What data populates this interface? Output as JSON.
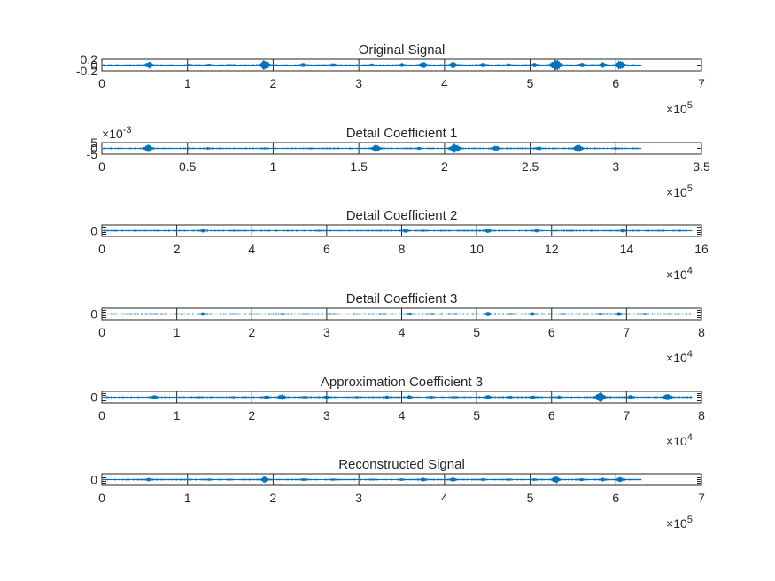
{
  "figure": {
    "background": "#ffffff",
    "line_color": "#0072BD",
    "axis_color": "#262626"
  },
  "chart_data": [
    {
      "type": "line",
      "title": "Original Signal",
      "xlim": [
        0,
        700000
      ],
      "xticks": [
        0,
        100000,
        200000,
        300000,
        400000,
        500000,
        600000,
        700000
      ],
      "xtick_labels": [
        "0",
        "1",
        "2",
        "3",
        "4",
        "5",
        "6",
        "7"
      ],
      "x_exponent": "10",
      "x_exponent_power": "5",
      "ylim": [
        -0.2,
        0.2
      ],
      "yticks": [
        0.2,
        0,
        -0.2
      ],
      "ytick_labels": [
        "0.2",
        "0",
        "-0.2"
      ],
      "y_exponent": "",
      "data_length": 630000,
      "bursts": [
        {
          "x": 55000,
          "amp": 0.12
        },
        {
          "x": 102000,
          "amp": 0.05
        },
        {
          "x": 125000,
          "amp": 0.06
        },
        {
          "x": 150000,
          "amp": 0.05
        },
        {
          "x": 190000,
          "amp": 0.17
        },
        {
          "x": 235000,
          "amp": 0.08
        },
        {
          "x": 270000,
          "amp": 0.07
        },
        {
          "x": 315000,
          "amp": 0.06
        },
        {
          "x": 350000,
          "amp": 0.07
        },
        {
          "x": 375000,
          "amp": 0.12
        },
        {
          "x": 410000,
          "amp": 0.12
        },
        {
          "x": 445000,
          "amp": 0.09
        },
        {
          "x": 475000,
          "amp": 0.07
        },
        {
          "x": 505000,
          "amp": 0.08
        },
        {
          "x": 530000,
          "amp": 0.2
        },
        {
          "x": 560000,
          "amp": 0.09
        },
        {
          "x": 585000,
          "amp": 0.1
        },
        {
          "x": 605000,
          "amp": 0.16
        }
      ]
    },
    {
      "type": "line",
      "title": "Detail Coefficient 1",
      "xlim": [
        0,
        350000
      ],
      "xticks": [
        0,
        50000,
        100000,
        150000,
        200000,
        250000,
        300000,
        350000
      ],
      "xtick_labels": [
        "0",
        "0.5",
        "1",
        "1.5",
        "2",
        "2.5",
        "3",
        "3.5"
      ],
      "x_exponent": "10",
      "x_exponent_power": "5",
      "ylim": [
        -0.005,
        0.005
      ],
      "yticks": [
        0.005,
        0,
        -0.005
      ],
      "ytick_labels": [
        "5",
        "0",
        "-5"
      ],
      "y_exponent": "10",
      "y_exponent_power": "-3",
      "data_length": 315000,
      "bursts": [
        {
          "x": 27000,
          "amp": 0.0035
        },
        {
          "x": 62000,
          "amp": 0.0012
        },
        {
          "x": 95000,
          "amp": 0.001
        },
        {
          "x": 122000,
          "amp": 0.0009
        },
        {
          "x": 160000,
          "amp": 0.0035
        },
        {
          "x": 185000,
          "amp": 0.0015
        },
        {
          "x": 206000,
          "amp": 0.0045
        },
        {
          "x": 230000,
          "amp": 0.0025
        },
        {
          "x": 255000,
          "amp": 0.002
        },
        {
          "x": 278000,
          "amp": 0.0035
        },
        {
          "x": 300000,
          "amp": 0.0012
        }
      ]
    },
    {
      "type": "line",
      "title": "Detail Coefficient 2",
      "xlim": [
        0,
        160000
      ],
      "xticks": [
        0,
        20000,
        40000,
        60000,
        80000,
        100000,
        120000,
        140000,
        160000
      ],
      "xtick_labels": [
        "0",
        "2",
        "4",
        "6",
        "8",
        "10",
        "12",
        "14",
        "16"
      ],
      "x_exponent": "10",
      "x_exponent_power": "4",
      "ylim": [
        -0.06,
        0.06
      ],
      "yticks": [
        0
      ],
      "ytick_labels": [
        "0"
      ],
      "y_exponent": "",
      "data_length": 157500,
      "bursts": [
        {
          "x": 27000,
          "amp": 0.02
        },
        {
          "x": 35000,
          "amp": 0.006
        },
        {
          "x": 58000,
          "amp": 0.006
        },
        {
          "x": 81000,
          "amp": 0.025
        },
        {
          "x": 86000,
          "amp": 0.012
        },
        {
          "x": 103000,
          "amp": 0.025
        },
        {
          "x": 116000,
          "amp": 0.02
        },
        {
          "x": 125000,
          "amp": 0.012
        },
        {
          "x": 139000,
          "amp": 0.022
        },
        {
          "x": 149000,
          "amp": 0.006
        }
      ]
    },
    {
      "type": "line",
      "title": "Detail Coefficient 3",
      "xlim": [
        0,
        80000
      ],
      "xticks": [
        0,
        10000,
        20000,
        30000,
        40000,
        50000,
        60000,
        70000,
        80000
      ],
      "xtick_labels": [
        "0",
        "1",
        "2",
        "3",
        "4",
        "5",
        "6",
        "7",
        "8"
      ],
      "x_exponent": "10",
      "x_exponent_power": "4",
      "ylim": [
        -0.06,
        0.06
      ],
      "yticks": [
        0
      ],
      "ytick_labels": [
        "0"
      ],
      "y_exponent": "",
      "data_length": 78750,
      "bursts": [
        {
          "x": 7000,
          "amp": 0.006
        },
        {
          "x": 13500,
          "amp": 0.02
        },
        {
          "x": 17500,
          "amp": 0.01
        },
        {
          "x": 24000,
          "amp": 0.012
        },
        {
          "x": 30500,
          "amp": 0.01
        },
        {
          "x": 34000,
          "amp": 0.008
        },
        {
          "x": 37500,
          "amp": 0.01
        },
        {
          "x": 41000,
          "amp": 0.018
        },
        {
          "x": 44000,
          "amp": 0.014
        },
        {
          "x": 47000,
          "amp": 0.01
        },
        {
          "x": 51500,
          "amp": 0.025
        },
        {
          "x": 54500,
          "amp": 0.012
        },
        {
          "x": 57500,
          "amp": 0.02
        },
        {
          "x": 61500,
          "amp": 0.012
        },
        {
          "x": 66500,
          "amp": 0.014
        },
        {
          "x": 69000,
          "amp": 0.022
        },
        {
          "x": 72500,
          "amp": 0.012
        },
        {
          "x": 75500,
          "amp": 0.008
        }
      ]
    },
    {
      "type": "line",
      "title": "Approximation Coefficient 3",
      "xlim": [
        0,
        80000
      ],
      "xticks": [
        0,
        10000,
        20000,
        30000,
        40000,
        50000,
        60000,
        70000,
        80000
      ],
      "xtick_labels": [
        "0",
        "1",
        "2",
        "3",
        "4",
        "5",
        "6",
        "7",
        "8"
      ],
      "x_exponent": "10",
      "x_exponent_power": "4",
      "ylim": [
        -0.6,
        0.6
      ],
      "yticks": [
        0
      ],
      "ytick_labels": [
        "0"
      ],
      "y_exponent": "",
      "data_length": 78750,
      "bursts": [
        {
          "x": 7000,
          "amp": 0.25
        },
        {
          "x": 13000,
          "amp": 0.12
        },
        {
          "x": 17500,
          "amp": 0.12
        },
        {
          "x": 22000,
          "amp": 0.2
        },
        {
          "x": 24000,
          "amp": 0.35
        },
        {
          "x": 27000,
          "amp": 0.15
        },
        {
          "x": 30000,
          "amp": 0.2
        },
        {
          "x": 34000,
          "amp": 0.15
        },
        {
          "x": 38000,
          "amp": 0.18
        },
        {
          "x": 41000,
          "amp": 0.22
        },
        {
          "x": 44000,
          "amp": 0.15
        },
        {
          "x": 47000,
          "amp": 0.12
        },
        {
          "x": 51500,
          "amp": 0.25
        },
        {
          "x": 54500,
          "amp": 0.18
        },
        {
          "x": 57500,
          "amp": 0.2
        },
        {
          "x": 61000,
          "amp": 0.18
        },
        {
          "x": 66500,
          "amp": 0.5
        },
        {
          "x": 70500,
          "amp": 0.25
        },
        {
          "x": 75500,
          "amp": 0.4
        }
      ]
    },
    {
      "type": "line",
      "title": "Reconstructed Signal",
      "xlim": [
        0,
        700000
      ],
      "xticks": [
        0,
        100000,
        200000,
        300000,
        400000,
        500000,
        600000,
        700000
      ],
      "xtick_labels": [
        "0",
        "1",
        "2",
        "3",
        "4",
        "5",
        "6",
        "7"
      ],
      "x_exponent": "10",
      "x_exponent_power": "5",
      "ylim": [
        -0.6,
        0.6
      ],
      "yticks": [
        0
      ],
      "ytick_labels": [
        "0"
      ],
      "y_exponent": "",
      "data_length": 630000,
      "bursts": [
        {
          "x": 55000,
          "amp": 0.22
        },
        {
          "x": 102000,
          "amp": 0.1
        },
        {
          "x": 125000,
          "amp": 0.12
        },
        {
          "x": 150000,
          "amp": 0.1
        },
        {
          "x": 190000,
          "amp": 0.35
        },
        {
          "x": 235000,
          "amp": 0.15
        },
        {
          "x": 270000,
          "amp": 0.14
        },
        {
          "x": 315000,
          "amp": 0.12
        },
        {
          "x": 350000,
          "amp": 0.14
        },
        {
          "x": 375000,
          "amp": 0.22
        },
        {
          "x": 410000,
          "amp": 0.25
        },
        {
          "x": 445000,
          "amp": 0.18
        },
        {
          "x": 475000,
          "amp": 0.14
        },
        {
          "x": 505000,
          "amp": 0.16
        },
        {
          "x": 530000,
          "amp": 0.4
        },
        {
          "x": 560000,
          "amp": 0.18
        },
        {
          "x": 585000,
          "amp": 0.2
        },
        {
          "x": 605000,
          "amp": 0.3
        }
      ]
    }
  ]
}
